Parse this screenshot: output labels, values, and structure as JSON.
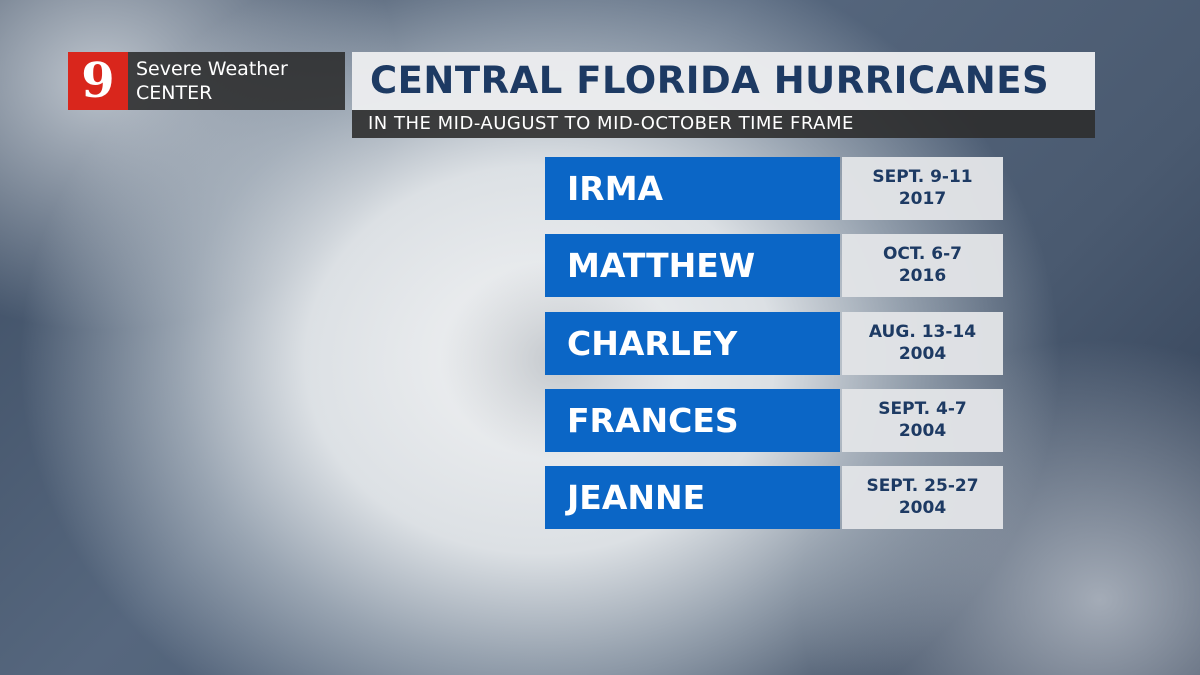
{
  "logo": {
    "number": "9",
    "line1": "Severe Weather",
    "line2": "CENTER"
  },
  "header": {
    "title": "CENTRAL FLORIDA HURRICANES",
    "subtitle": "IN THE MID-AUGUST TO MID-OCTOBER TIME FRAME"
  },
  "hurricanes": [
    {
      "name": "IRMA",
      "dates": "SEPT. 9-11",
      "year": "2017"
    },
    {
      "name": "MATTHEW",
      "dates": "OCT. 6-7",
      "year": "2016"
    },
    {
      "name": "CHARLEY",
      "dates": "AUG. 13-14",
      "year": "2004"
    },
    {
      "name": "FRANCES",
      "dates": "SEPT. 4-7",
      "year": "2004"
    },
    {
      "name": "JEANNE",
      "dates": "SEPT. 25-27",
      "year": "2004"
    }
  ]
}
